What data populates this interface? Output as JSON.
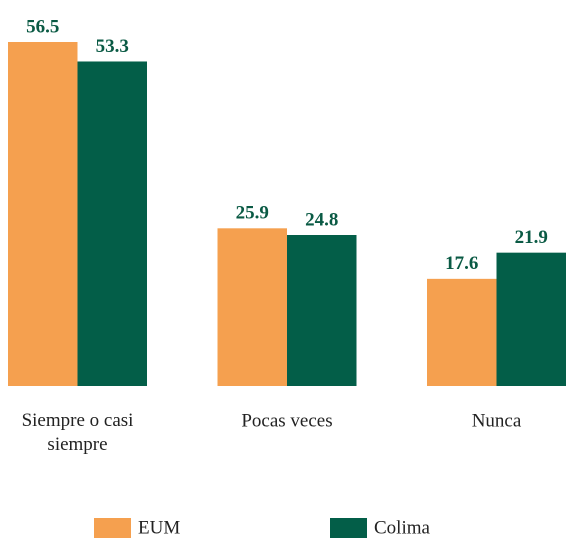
{
  "chart_data": {
    "type": "bar",
    "categories": [
      "Siempre o casi siempre",
      "Pocas veces",
      "Nunca"
    ],
    "series": [
      {
        "name": "EUM",
        "color": "#f5a04f",
        "values": [
          56.5,
          25.9,
          17.6
        ]
      },
      {
        "name": "Colima",
        "color": "#035e48",
        "values": [
          53.3,
          24.8,
          21.9
        ]
      }
    ]
  }
}
